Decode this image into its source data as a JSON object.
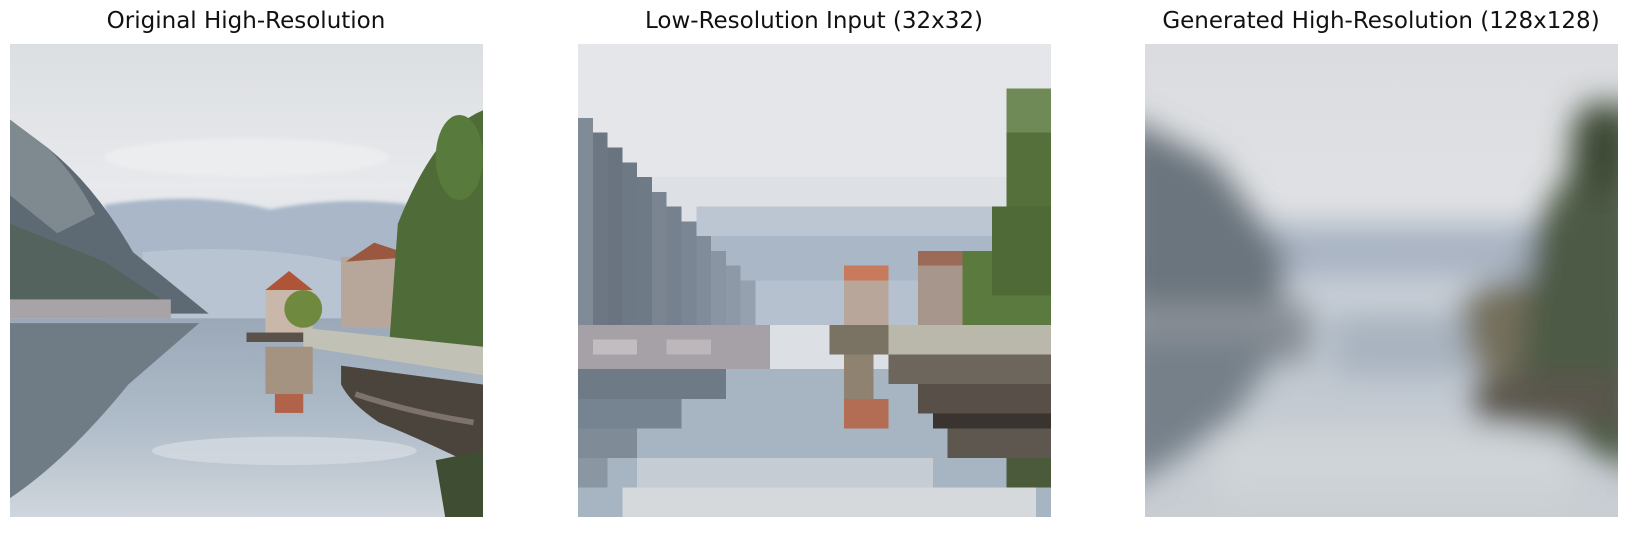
{
  "panels": [
    {
      "title": "Original High-Resolution"
    },
    {
      "title": "Low-Resolution Input (32x32)"
    },
    {
      "title": "Generated High-Resolution (128x128)"
    }
  ]
}
